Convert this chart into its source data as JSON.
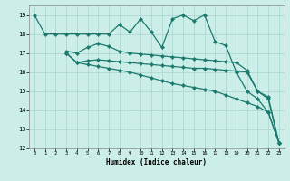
{
  "xlabel": "Humidex (Indice chaleur)",
  "bg_color": "#cceee8",
  "grid_color": "#aad4ce",
  "line_color": "#1a7a6e",
  "xlim": [
    -0.5,
    23.5
  ],
  "ylim": [
    12,
    19.5
  ],
  "xticks": [
    0,
    1,
    2,
    3,
    4,
    5,
    6,
    7,
    8,
    9,
    10,
    11,
    12,
    13,
    14,
    15,
    16,
    17,
    18,
    19,
    20,
    21,
    22,
    23
  ],
  "yticks": [
    12,
    13,
    14,
    15,
    16,
    17,
    18,
    19
  ],
  "line1_x": [
    0,
    1,
    2,
    3,
    4,
    5,
    6,
    7,
    8,
    9,
    10,
    11,
    12,
    13,
    14,
    15,
    16,
    17,
    18,
    19,
    20,
    21,
    22,
    23
  ],
  "line1_y": [
    19.0,
    18.0,
    18.0,
    18.0,
    18.0,
    18.0,
    18.0,
    18.0,
    18.5,
    18.1,
    18.8,
    18.1,
    17.3,
    18.8,
    19.0,
    18.7,
    19.0,
    17.6,
    17.4,
    16.0,
    15.0,
    14.6,
    13.9,
    12.3
  ],
  "line2_x": [
    3,
    4,
    5,
    6,
    7,
    8,
    9,
    10,
    11,
    12,
    13,
    14,
    15,
    16,
    17,
    18,
    19,
    20,
    21,
    22,
    23
  ],
  "line2_y": [
    17.1,
    17.0,
    17.3,
    17.5,
    17.35,
    17.1,
    17.0,
    16.95,
    16.9,
    16.85,
    16.8,
    16.75,
    16.7,
    16.65,
    16.6,
    16.55,
    16.5,
    16.1,
    15.0,
    14.6,
    12.3
  ],
  "line3_x": [
    3,
    4,
    5,
    6,
    7,
    8,
    9,
    10,
    11,
    12,
    13,
    14,
    15,
    16,
    17,
    18,
    19,
    20,
    21,
    22,
    23
  ],
  "line3_y": [
    17.0,
    16.5,
    16.6,
    16.65,
    16.6,
    16.55,
    16.5,
    16.45,
    16.4,
    16.35,
    16.3,
    16.25,
    16.2,
    16.2,
    16.15,
    16.1,
    16.05,
    16.0,
    15.0,
    14.7,
    12.3
  ],
  "line4_x": [
    3,
    4,
    5,
    6,
    7,
    8,
    9,
    10,
    11,
    12,
    13,
    14,
    15,
    16,
    17,
    18,
    19,
    20,
    21,
    22,
    23
  ],
  "line4_y": [
    17.0,
    16.5,
    16.4,
    16.3,
    16.2,
    16.1,
    16.0,
    15.85,
    15.7,
    15.55,
    15.4,
    15.3,
    15.2,
    15.1,
    15.0,
    14.8,
    14.6,
    14.4,
    14.2,
    13.9,
    12.3
  ]
}
